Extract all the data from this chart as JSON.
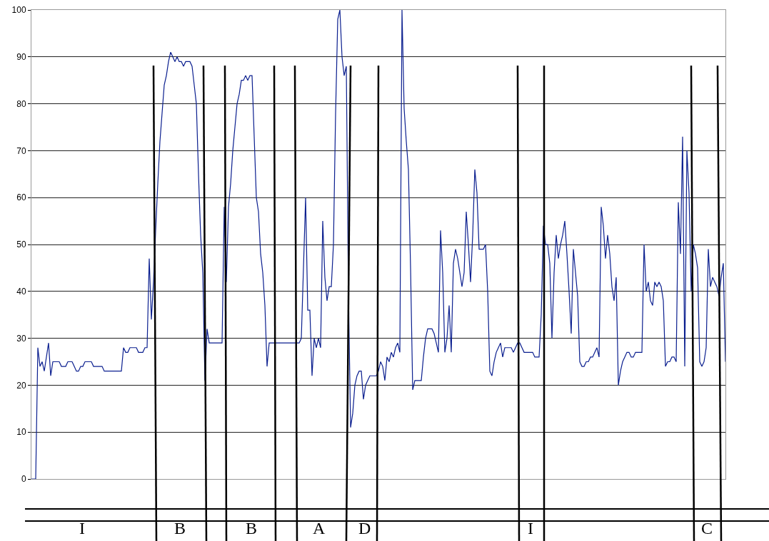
{
  "chart_data": {
    "type": "line",
    "categories": [
      null,
      null,
      null,
      null,
      null,
      null,
      null,
      null,
      null,
      null,
      null,
      null,
      null,
      null,
      null,
      null,
      null,
      null,
      null,
      null,
      null,
      null,
      null,
      null,
      null,
      null,
      null,
      null,
      null,
      null,
      null,
      null,
      null,
      null,
      null,
      null,
      null,
      null,
      null,
      null,
      null,
      null,
      null,
      null,
      null,
      null,
      null,
      null,
      null,
      null,
      null,
      null,
      null,
      null,
      null,
      null,
      null,
      null,
      null,
      null,
      null,
      null,
      null,
      null,
      null,
      null,
      null,
      null,
      null,
      null,
      null,
      null,
      null,
      null,
      null,
      null,
      null,
      null,
      null,
      null,
      null,
      null,
      null,
      null,
      null,
      null,
      null,
      null,
      null,
      null,
      null,
      null,
      null,
      null,
      null,
      null,
      null,
      null,
      null,
      null,
      null,
      null,
      null,
      null,
      null,
      null,
      null,
      null,
      null,
      null,
      null,
      null,
      null,
      null,
      null,
      null,
      null,
      null,
      null,
      null,
      null,
      null,
      null,
      null,
      null,
      null,
      null,
      null,
      null,
      null,
      null,
      null,
      null,
      null,
      null,
      null,
      null,
      null,
      null,
      null,
      null,
      null,
      null,
      null,
      null,
      null,
      null,
      null,
      null,
      null,
      null,
      null,
      null,
      null,
      null,
      null,
      null,
      null,
      null,
      null,
      null,
      null,
      null,
      null,
      null,
      null,
      null,
      null,
      null,
      null,
      null,
      null,
      null,
      null,
      null,
      null,
      null,
      null,
      null,
      null,
      null,
      null,
      null,
      null,
      null,
      null,
      null,
      null,
      null,
      null,
      null,
      null,
      null,
      null,
      null,
      null,
      null,
      null,
      null,
      null,
      null,
      null,
      null,
      null,
      null,
      null,
      null,
      null,
      null,
      null,
      null,
      null,
      null,
      null,
      null,
      null,
      null,
      null,
      null,
      null,
      null,
      null,
      null,
      null,
      null,
      null,
      null,
      null,
      null,
      null,
      null,
      null,
      null,
      null,
      null,
      null,
      null,
      null,
      null,
      null,
      null,
      null,
      null,
      null,
      null,
      null,
      null,
      null,
      null,
      null,
      null,
      null,
      null,
      null,
      null,
      null,
      null,
      null,
      null,
      null,
      null,
      null,
      null,
      null,
      null,
      null,
      null,
      null,
      null,
      null,
      null,
      null,
      null,
      null,
      null,
      null,
      null,
      null,
      null,
      null,
      null,
      null,
      null,
      null,
      null,
      null,
      null,
      null,
      null,
      null,
      null,
      null,
      null,
      null,
      null,
      null,
      null,
      null,
      null,
      null,
      null,
      null,
      null,
      null,
      null,
      null,
      null,
      null,
      null,
      null,
      null,
      null,
      null,
      null,
      null,
      null,
      null,
      null,
      null,
      null,
      null,
      null,
      null,
      null,
      null
    ],
    "series": [
      {
        "color": "#0b1f8f",
        "values": [
          0,
          0,
          0,
          28,
          24,
          25,
          23,
          26,
          29,
          22,
          25,
          25,
          25,
          25,
          24,
          24,
          24,
          25,
          25,
          25,
          24,
          23,
          23,
          24,
          24,
          25,
          25,
          25,
          25,
          24,
          24,
          24,
          24,
          24,
          23,
          23,
          23,
          23,
          23,
          23,
          23,
          23,
          23,
          28,
          27,
          27,
          28,
          28,
          28,
          28,
          27,
          27,
          27,
          28,
          28,
          47,
          34,
          42,
          53,
          63,
          72,
          78,
          84,
          86,
          89,
          91,
          90,
          89,
          90,
          89,
          89,
          88,
          89,
          89,
          89,
          88,
          84,
          80,
          65,
          52,
          44,
          21,
          32,
          29,
          29,
          29,
          29,
          29,
          29,
          29,
          58,
          42,
          58,
          63,
          70,
          75,
          80,
          82,
          85,
          85,
          86,
          85,
          86,
          86,
          73,
          60,
          57,
          48,
          44,
          37,
          24,
          29,
          29,
          29,
          29,
          29,
          29,
          29,
          29,
          29,
          29,
          29,
          29,
          29,
          29,
          29,
          30,
          45,
          60,
          36,
          36,
          22,
          30,
          28,
          30,
          28,
          55,
          43,
          38,
          41,
          41,
          50,
          78,
          98,
          100,
          90,
          86,
          88,
          40,
          11,
          14,
          20,
          22,
          23,
          23,
          17,
          20,
          21,
          22,
          22,
          22,
          22,
          23,
          25,
          24,
          21,
          26,
          25,
          27,
          26,
          28,
          29,
          27,
          100,
          79,
          72,
          66,
          45,
          19,
          21,
          21,
          21,
          21,
          26,
          30,
          32,
          32,
          32,
          31,
          29,
          27,
          53,
          44,
          27,
          30,
          37,
          27,
          46,
          49,
          47,
          44,
          41,
          44,
          57,
          50,
          42,
          52,
          66,
          61,
          49,
          49,
          49,
          50,
          40,
          23,
          22,
          25,
          27,
          28,
          29,
          26,
          28,
          28,
          28,
          28,
          27,
          28,
          29,
          29,
          28,
          27,
          27,
          27,
          27,
          27,
          26,
          26,
          26,
          35,
          54,
          50,
          50,
          46,
          30,
          44,
          52,
          47,
          50,
          52,
          55,
          48,
          40,
          31,
          49,
          44,
          39,
          25,
          24,
          24,
          25,
          25,
          26,
          26,
          27,
          28,
          26,
          58,
          54,
          47,
          52,
          48,
          41,
          38,
          43,
          20,
          23,
          25,
          26,
          27,
          27,
          26,
          26,
          27,
          27,
          27,
          27,
          50,
          40,
          42,
          38,
          37,
          42,
          41,
          42,
          41,
          38,
          24,
          25,
          25,
          26,
          26,
          25,
          59,
          48,
          73,
          24,
          70,
          61,
          40,
          50,
          48,
          45,
          25,
          24,
          25,
          28,
          49,
          41,
          43,
          42,
          41,
          39,
          43,
          46,
          25
        ]
      }
    ],
    "ylim": [
      0,
      100
    ],
    "yticks": [
      0,
      10,
      20,
      30,
      40,
      50,
      60,
      70,
      80,
      90,
      100
    ],
    "grid": "y",
    "tick_labels": "y",
    "annotations": [
      "I",
      "B",
      "B",
      "A",
      "D",
      "I",
      "C"
    ]
  }
}
